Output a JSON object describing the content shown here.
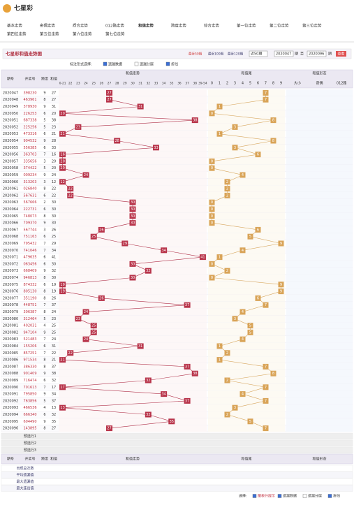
{
  "header": {
    "logo": "七星彩",
    "nav": [
      "基本走势",
      "奇偶走势",
      "质合走势",
      "012路走势",
      "和值走势",
      "跨度走势",
      "综合走势",
      "第一位走势",
      "第二位走势",
      "第三位走势",
      "第四位走势",
      "第五位走势",
      "第六位走势",
      "第七位走势"
    ]
  },
  "toolbar": {
    "title": "七星彩和值走势图",
    "ranges": [
      "最近50期",
      "最近100期",
      "最近120期"
    ],
    "select": "近50期",
    "from": "2020047",
    "unit1": "期",
    "to_label": "至",
    "to": "2020096",
    "unit2": "期",
    "button": "查看"
  },
  "options": {
    "label": "标注形式选择:",
    "items": [
      "遗漏数据",
      "遗漏分层",
      "折线"
    ]
  },
  "table": {
    "columns": [
      "期号",
      "开奖号",
      "跨度",
      "和值"
    ],
    "groups": [
      "和值走势",
      "和值尾",
      "和值形态"
    ],
    "sum_columns": [
      "0-21",
      "22",
      "23",
      "24",
      "25",
      "26",
      "27",
      "28",
      "29",
      "30",
      "31",
      "32",
      "33",
      "34",
      "35",
      "36",
      "37",
      "38",
      "39-54"
    ],
    "tail_columns": [
      "0",
      "1",
      "2",
      "3",
      "4",
      "5",
      "6",
      "7",
      "8",
      "9"
    ],
    "form_columns": [
      "大小",
      "奇偶",
      "012路"
    ],
    "rows": [
      [
        "2020047",
        "398230",
        9,
        27,
        7
      ],
      [
        "2020048",
        "463961",
        8,
        27,
        7
      ],
      [
        "2020049",
        "378930",
        9,
        31,
        1
      ],
      [
        "2020050",
        "226253",
        6,
        20,
        0
      ],
      [
        "2020051",
        "687338",
        5,
        38,
        8
      ],
      [
        "2020052",
        "225256",
        5,
        23,
        3
      ],
      [
        "2020053",
        "473316",
        6,
        21,
        1
      ],
      [
        "2020054",
        "904532",
        9,
        28,
        8
      ],
      [
        "2020055",
        "556385",
        6,
        33,
        3
      ],
      [
        "2020056",
        "363703",
        7,
        16,
        6
      ],
      [
        "2020057",
        "335656",
        3,
        20,
        0
      ],
      [
        "2020058",
        "374422",
        5,
        20,
        0
      ],
      [
        "2020059",
        "009234",
        9,
        24,
        4
      ],
      [
        "2020060",
        "313203",
        3,
        12,
        2
      ],
      [
        "2020061",
        "026840",
        8,
        22,
        2
      ],
      [
        "2020062",
        "567631",
        6,
        22,
        2
      ],
      [
        "2020063",
        "567666",
        2,
        30,
        0
      ],
      [
        "2020064",
        "222731",
        6,
        30,
        0
      ],
      [
        "2020065",
        "748073",
        8,
        30,
        0
      ],
      [
        "2020066",
        "709370",
        9,
        30,
        0
      ],
      [
        "2020067",
        "567744",
        3,
        26,
        6
      ],
      [
        "2020068",
        "751163",
        6,
        25,
        5
      ],
      [
        "2020069",
        "795432",
        7,
        29,
        9
      ],
      [
        "2020070",
        "741046",
        7,
        34,
        4
      ],
      [
        "2020071",
        "479635",
        6,
        41,
        1
      ],
      [
        "2020072",
        "063456",
        6,
        30,
        0
      ],
      [
        "2020073",
        "668409",
        9,
        32,
        2
      ],
      [
        "2020074",
        "946813",
        8,
        30,
        0
      ],
      [
        "2020075",
        "874332",
        6,
        19,
        9
      ],
      [
        "2020076",
        "805130",
        8,
        19,
        9
      ],
      [
        "2020077",
        "351190",
        8,
        26,
        6
      ],
      [
        "2020078",
        "448751",
        7,
        37,
        7
      ],
      [
        "2020079",
        "306387",
        8,
        24,
        4
      ],
      [
        "2020080",
        "312464",
        5,
        23,
        3
      ],
      [
        "2020081",
        "402031",
        4,
        25,
        5
      ],
      [
        "2020082",
        "947104",
        9,
        25,
        5
      ],
      [
        "2020083",
        "521483",
        7,
        24,
        4
      ],
      [
        "2020084",
        "155206",
        6,
        31,
        1
      ],
      [
        "2020085",
        "857251",
        7,
        22,
        2
      ],
      [
        "2020086",
        "971534",
        8,
        21,
        1
      ],
      [
        "2020087",
        "386330",
        8,
        37,
        7
      ],
      [
        "2020088",
        "901409",
        9,
        38,
        8
      ],
      [
        "2020089",
        "716474",
        6,
        32,
        2
      ],
      [
        "2020090",
        "701613",
        7,
        17,
        7
      ],
      [
        "2020091",
        "795850",
        9,
        34,
        4
      ],
      [
        "2020092",
        "763856",
        5,
        37,
        7
      ],
      [
        "2020093",
        "466536",
        4,
        13,
        3
      ],
      [
        "2020094",
        "666340",
        6,
        32,
        2
      ],
      [
        "2020095",
        "604490",
        9,
        35,
        5
      ],
      [
        "2020096",
        "143895",
        8,
        27,
        7
      ]
    ],
    "preselect": [
      "预选行1",
      "预选行2",
      "预选行3"
    ],
    "stats": [
      "出现总次数",
      "平均遗漏值",
      "最大遗漏值",
      "最大连出值"
    ]
  },
  "footer": {
    "label": "选择:",
    "items": [
      "图表行提示",
      "遗漏数据",
      "遗漏分层",
      "折线"
    ]
  }
}
